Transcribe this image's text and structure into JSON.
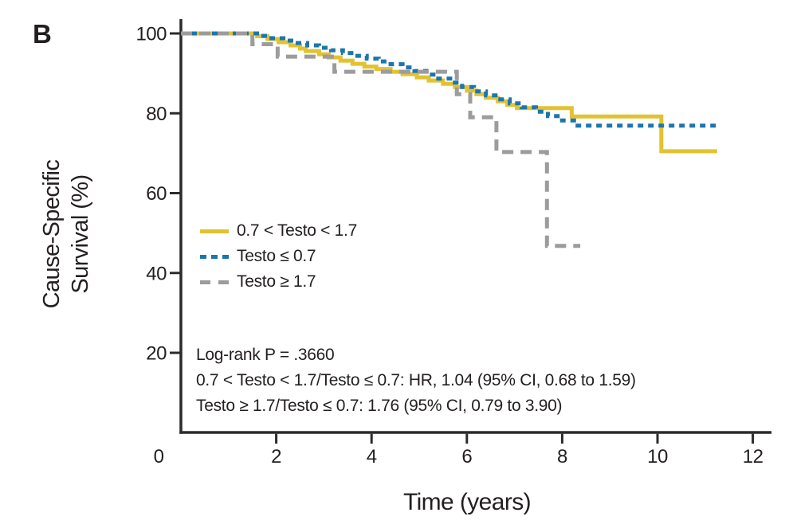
{
  "panel": {
    "label": "B"
  },
  "colors": {
    "background": "#FFFFFF",
    "text": "#231F20",
    "axis": "#2B2B2B",
    "series_yellow": "#E3C231",
    "series_blue": "#1C76AD",
    "series_gray": "#9C9C9C"
  },
  "chart_data": {
    "type": "line",
    "subtype": "kaplan-meier-step",
    "title": "",
    "xlabel": "Time (years)",
    "ylabel": "Cause-Specific Survival (%)",
    "ylabel_lines": [
      "Cause-Specific",
      "Survival (%)"
    ],
    "xlim": [
      0,
      12.4
    ],
    "ylim": [
      0,
      100
    ],
    "xticks": [
      0,
      2,
      4,
      6,
      8,
      10,
      12
    ],
    "yticks": [
      100,
      80,
      60,
      40,
      20
    ],
    "grid": false,
    "legend_position": "inside-left-middle",
    "series": [
      {
        "name": "0.7 < Testo < 1.7",
        "style": "solid",
        "color": "#E3C231",
        "dash": "",
        "points": [
          [
            0,
            100
          ],
          [
            1.6,
            100
          ],
          [
            1.6,
            99.3
          ],
          [
            1.82,
            99.3
          ],
          [
            1.82,
            98.6
          ],
          [
            2.05,
            98.6
          ],
          [
            2.05,
            97.8
          ],
          [
            2.3,
            97.8
          ],
          [
            2.3,
            97.0
          ],
          [
            2.5,
            97.0
          ],
          [
            2.5,
            96.2
          ],
          [
            2.62,
            96.2
          ],
          [
            2.62,
            95.6
          ],
          [
            2.9,
            95.6
          ],
          [
            2.9,
            94.8
          ],
          [
            3.1,
            94.8
          ],
          [
            3.1,
            94.0
          ],
          [
            3.35,
            94.0
          ],
          [
            3.35,
            93.2
          ],
          [
            3.6,
            93.2
          ],
          [
            3.6,
            92.4
          ],
          [
            3.85,
            92.4
          ],
          [
            3.85,
            91.7
          ],
          [
            4.1,
            91.7
          ],
          [
            4.1,
            91.1
          ],
          [
            4.4,
            91.1
          ],
          [
            4.4,
            90.4
          ],
          [
            4.65,
            90.4
          ],
          [
            4.65,
            89.8
          ],
          [
            4.95,
            89.8
          ],
          [
            4.95,
            89.0
          ],
          [
            5.2,
            89.0
          ],
          [
            5.2,
            88.2
          ],
          [
            5.5,
            88.2
          ],
          [
            5.5,
            87.4
          ],
          [
            5.75,
            87.4
          ],
          [
            5.75,
            86.6
          ],
          [
            6.0,
            86.6
          ],
          [
            6.0,
            85.7
          ],
          [
            6.2,
            85.7
          ],
          [
            6.2,
            84.8
          ],
          [
            6.4,
            84.8
          ],
          [
            6.4,
            83.9
          ],
          [
            6.65,
            83.9
          ],
          [
            6.65,
            83.0
          ],
          [
            6.85,
            83.0
          ],
          [
            6.85,
            82.1
          ],
          [
            7.05,
            82.1
          ],
          [
            7.05,
            81.3
          ],
          [
            8.2,
            81.3
          ],
          [
            8.2,
            79.2
          ],
          [
            10.08,
            79.2
          ],
          [
            10.08,
            70.5
          ],
          [
            11.25,
            70.5
          ]
        ]
      },
      {
        "name": "Testo ≤ 0.7",
        "style": "dotted",
        "color": "#1C76AD",
        "dash": "7 6",
        "points": [
          [
            0,
            100
          ],
          [
            1.65,
            100
          ],
          [
            1.65,
            99.4
          ],
          [
            1.9,
            99.4
          ],
          [
            1.9,
            98.8
          ],
          [
            2.15,
            98.8
          ],
          [
            2.15,
            98.2
          ],
          [
            2.4,
            98.2
          ],
          [
            2.4,
            97.6
          ],
          [
            2.65,
            97.6
          ],
          [
            2.65,
            97.0
          ],
          [
            2.9,
            97.0
          ],
          [
            2.9,
            96.4
          ],
          [
            3.15,
            96.4
          ],
          [
            3.15,
            95.8
          ],
          [
            3.4,
            95.8
          ],
          [
            3.4,
            95.1
          ],
          [
            3.65,
            95.1
          ],
          [
            3.65,
            94.4
          ],
          [
            3.9,
            94.4
          ],
          [
            3.9,
            93.7
          ],
          [
            4.15,
            93.7
          ],
          [
            4.15,
            93.0
          ],
          [
            4.4,
            93.0
          ],
          [
            4.4,
            92.3
          ],
          [
            4.65,
            92.3
          ],
          [
            4.65,
            91.5
          ],
          [
            4.9,
            91.5
          ],
          [
            4.9,
            90.6
          ],
          [
            5.15,
            90.6
          ],
          [
            5.15,
            89.7
          ],
          [
            5.4,
            89.7
          ],
          [
            5.4,
            88.7
          ],
          [
            5.65,
            88.7
          ],
          [
            5.65,
            87.7
          ],
          [
            5.9,
            87.7
          ],
          [
            5.9,
            86.6
          ],
          [
            6.15,
            86.6
          ],
          [
            6.15,
            85.5
          ],
          [
            6.4,
            85.5
          ],
          [
            6.4,
            84.5
          ],
          [
            6.65,
            84.5
          ],
          [
            6.65,
            83.5
          ],
          [
            6.9,
            83.5
          ],
          [
            6.9,
            82.5
          ],
          [
            7.15,
            82.5
          ],
          [
            7.15,
            81.5
          ],
          [
            7.45,
            81.5
          ],
          [
            7.45,
            80.4
          ],
          [
            7.7,
            80.4
          ],
          [
            7.7,
            79.3
          ],
          [
            7.95,
            79.3
          ],
          [
            7.95,
            78.2
          ],
          [
            8.25,
            78.2
          ],
          [
            8.25,
            76.9
          ],
          [
            11.25,
            76.9
          ]
        ]
      },
      {
        "name": "Testo ≥ 1.7",
        "style": "dashed",
        "color": "#9C9C9C",
        "dash": "14 9",
        "points": [
          [
            0,
            100
          ],
          [
            1.5,
            100
          ],
          [
            1.5,
            97.3
          ],
          [
            2.03,
            97.3
          ],
          [
            2.03,
            94.2
          ],
          [
            3.22,
            94.2
          ],
          [
            3.22,
            90.4
          ],
          [
            5.79,
            90.4
          ],
          [
            5.79,
            84.8
          ],
          [
            6.07,
            84.8
          ],
          [
            6.07,
            79.0
          ],
          [
            6.62,
            79.0
          ],
          [
            6.62,
            70.3
          ],
          [
            7.68,
            70.3
          ],
          [
            7.68,
            46.8
          ],
          [
            8.38,
            46.8
          ]
        ]
      }
    ],
    "annotations": [
      "Log-rank P = .3660",
      "0.7 < Testo < 1.7/Testo ≤ 0.7: HR, 1.04 (95% CI, 0.68 to 1.59)",
      "Testo ≥ 1.7/Testo ≤ 0.7: 1.76 (95% CI, 0.79 to 3.90)"
    ]
  }
}
